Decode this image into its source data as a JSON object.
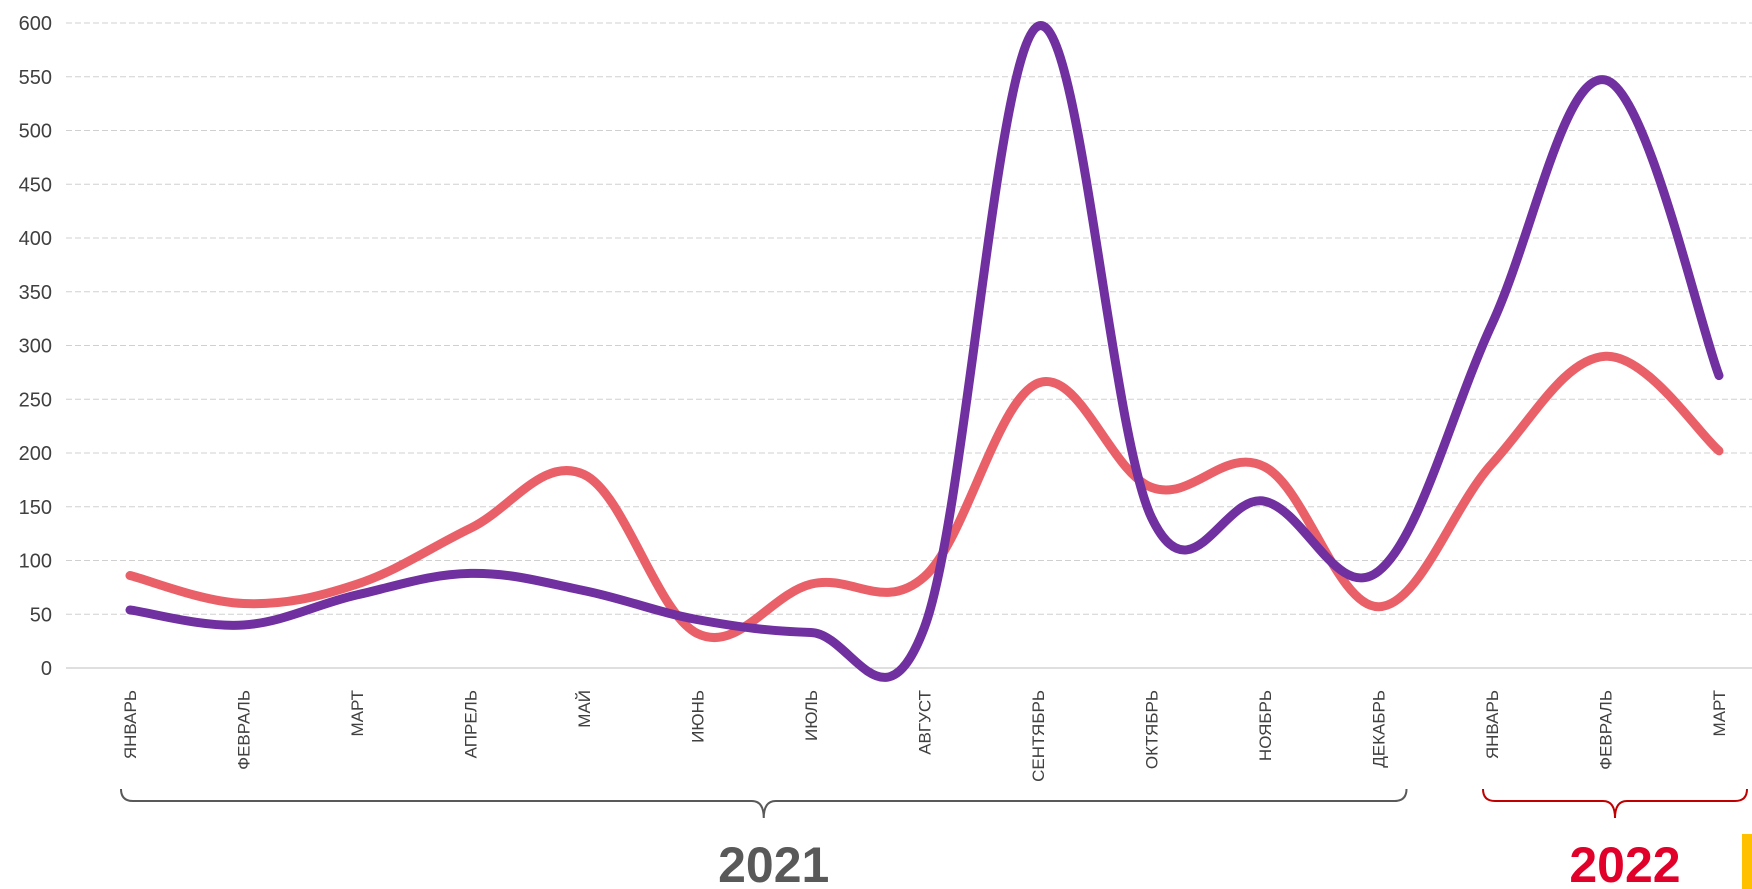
{
  "chart_data": {
    "type": "line",
    "categories": [
      "ЯНВАРЬ",
      "ФЕВРАЛЬ",
      "МАРТ",
      "АПРЕЛЬ",
      "МАЙ",
      "ИЮНЬ",
      "ИЮЛЬ",
      "АВГУСТ",
      "СЕНТЯБРЬ",
      "ОКТЯБРЬ",
      "НОЯБРЬ",
      "ДЕКАБРЬ",
      "ЯНВАРЬ",
      "ФЕВРАЛЬ",
      "МАРТ"
    ],
    "series": [
      {
        "values": [
          86,
          60,
          78,
          130,
          180,
          32,
          78,
          85,
          265,
          168,
          187,
          57,
          190,
          290,
          202
        ],
        "color": "#ea6068"
      },
      {
        "values": [
          54,
          40,
          68,
          88,
          72,
          45,
          33,
          38,
          597,
          140,
          155,
          90,
          320,
          547,
          272
        ],
        "color": "#7030a0"
      }
    ],
    "ylim": [
      0,
      600
    ],
    "yticks": [
      0,
      50,
      100,
      150,
      200,
      250,
      300,
      350,
      400,
      450,
      500,
      550,
      600
    ],
    "grid": true,
    "year_groups": [
      {
        "label": "2021",
        "from": 0,
        "to": 11,
        "color": "#595959"
      },
      {
        "label": "2022",
        "from": 12,
        "to": 14,
        "color": "#c00000",
        "label_color": "#e0002a"
      }
    ],
    "accent_color": "#ffc000"
  }
}
